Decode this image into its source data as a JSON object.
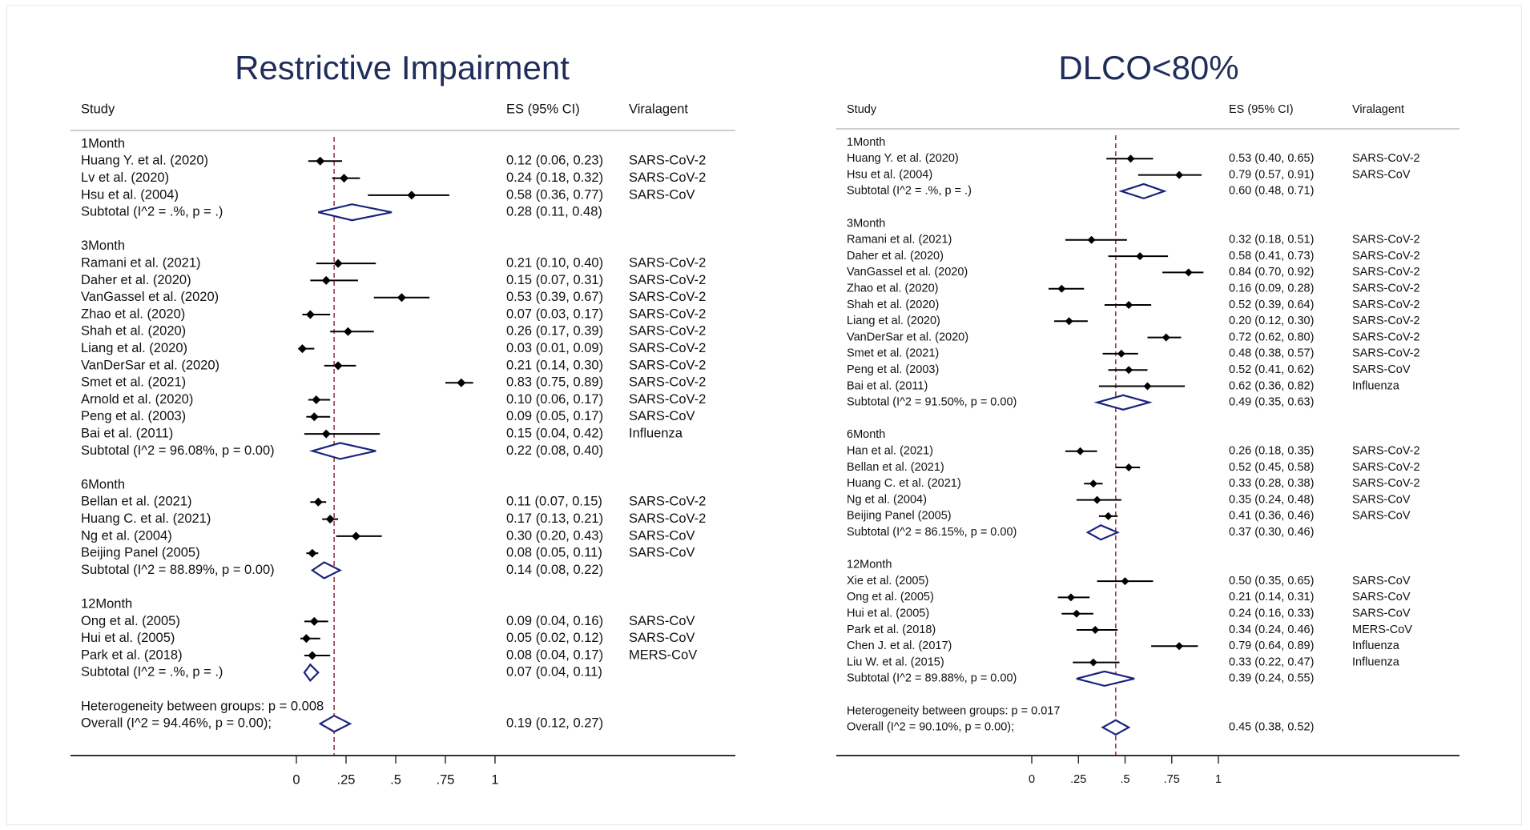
{
  "chart_data": [
    {
      "type": "forest",
      "title": "Restrictive Impairment",
      "headers": {
        "study": "Study",
        "es": "ES (95% CI)",
        "agent": "Viralagent"
      },
      "ticks": [
        0,
        0.25,
        0.5,
        0.75,
        1
      ],
      "tick_labels": [
        "0",
        ".25",
        ".5",
        ".75",
        "1"
      ],
      "xlim": [
        0,
        1
      ],
      "reference_line": 0.19,
      "groups": [
        {
          "label": "1Month",
          "studies": [
            {
              "name": "Huang Y. et al. (2020)",
              "es": 0.12,
              "lo": 0.06,
              "hi": 0.23,
              "es_text": "0.12 (0.06, 0.23)",
              "agent": "SARS-CoV-2"
            },
            {
              "name": "Lv et al. (2020)",
              "es": 0.24,
              "lo": 0.18,
              "hi": 0.32,
              "es_text": "0.24 (0.18, 0.32)",
              "agent": "SARS-CoV-2"
            },
            {
              "name": "Hsu et al. (2004)",
              "es": 0.58,
              "lo": 0.36,
              "hi": 0.77,
              "es_text": "0.58 (0.36, 0.77)",
              "agent": "SARS-CoV"
            }
          ],
          "subtotal": {
            "label": "Subtotal  (I^2 = .%, p = .)",
            "es": 0.28,
            "lo": 0.11,
            "hi": 0.48,
            "es_text": "0.28 (0.11, 0.48)"
          }
        },
        {
          "label": "3Month",
          "studies": [
            {
              "name": "Ramani et al. (2021)",
              "es": 0.21,
              "lo": 0.1,
              "hi": 0.4,
              "es_text": "0.21 (0.10, 0.40)",
              "agent": "SARS-CoV-2"
            },
            {
              "name": "Daher et al. (2020)",
              "es": 0.15,
              "lo": 0.07,
              "hi": 0.31,
              "es_text": "0.15 (0.07, 0.31)",
              "agent": "SARS-CoV-2"
            },
            {
              "name": "VanGassel et al. (2020)",
              "es": 0.53,
              "lo": 0.39,
              "hi": 0.67,
              "es_text": "0.53 (0.39, 0.67)",
              "agent": "SARS-CoV-2"
            },
            {
              "name": "Zhao et al. (2020)",
              "es": 0.07,
              "lo": 0.03,
              "hi": 0.17,
              "es_text": "0.07 (0.03, 0.17)",
              "agent": "SARS-CoV-2"
            },
            {
              "name": "Shah et al. (2020)",
              "es": 0.26,
              "lo": 0.17,
              "hi": 0.39,
              "es_text": "0.26 (0.17, 0.39)",
              "agent": "SARS-CoV-2"
            },
            {
              "name": "Liang et al.  (2020)",
              "es": 0.03,
              "lo": 0.01,
              "hi": 0.09,
              "es_text": "0.03 (0.01, 0.09)",
              "agent": "SARS-CoV-2"
            },
            {
              "name": "VanDerSar et al. (2020)",
              "es": 0.21,
              "lo": 0.14,
              "hi": 0.3,
              "es_text": "0.21 (0.14, 0.30)",
              "agent": "SARS-CoV-2"
            },
            {
              "name": "Smet et al. (2021)",
              "es": 0.83,
              "lo": 0.75,
              "hi": 0.89,
              "es_text": "0.83 (0.75, 0.89)",
              "agent": "SARS-CoV-2"
            },
            {
              "name": "Arnold et al. (2020)",
              "es": 0.1,
              "lo": 0.06,
              "hi": 0.17,
              "es_text": "0.10 (0.06, 0.17)",
              "agent": "SARS-CoV-2"
            },
            {
              "name": "Peng et al.  (2003)",
              "es": 0.09,
              "lo": 0.05,
              "hi": 0.17,
              "es_text": "0.09 (0.05, 0.17)",
              "agent": "SARS-CoV"
            },
            {
              "name": "Bai et al.  (2011)",
              "es": 0.15,
              "lo": 0.04,
              "hi": 0.42,
              "es_text": "0.15 (0.04, 0.42)",
              "agent": "Influenza"
            }
          ],
          "subtotal": {
            "label": "Subtotal  (I^2 = 96.08%, p = 0.00)",
            "es": 0.22,
            "lo": 0.08,
            "hi": 0.4,
            "es_text": "0.22 (0.08, 0.40)"
          }
        },
        {
          "label": "6Month",
          "studies": [
            {
              "name": "Bellan et al. (2021)",
              "es": 0.11,
              "lo": 0.07,
              "hi": 0.15,
              "es_text": "0.11 (0.07, 0.15)",
              "agent": "SARS-CoV-2"
            },
            {
              "name": "Huang C. et al. (2021)",
              "es": 0.17,
              "lo": 0.13,
              "hi": 0.21,
              "es_text": "0.17 (0.13, 0.21)",
              "agent": "SARS-CoV-2"
            },
            {
              "name": "Ng et al.  (2004)",
              "es": 0.3,
              "lo": 0.2,
              "hi": 0.43,
              "es_text": "0.30 (0.20, 0.43)",
              "agent": "SARS-CoV"
            },
            {
              "name": "Beijing Panel (2005)",
              "es": 0.08,
              "lo": 0.05,
              "hi": 0.11,
              "es_text": "0.08 (0.05, 0.11)",
              "agent": "SARS-CoV"
            }
          ],
          "subtotal": {
            "label": "Subtotal  (I^2 = 88.89%, p = 0.00)",
            "es": 0.14,
            "lo": 0.08,
            "hi": 0.22,
            "es_text": "0.14 (0.08, 0.22)"
          }
        },
        {
          "label": "12Month",
          "studies": [
            {
              "name": "Ong et al. (2005)",
              "es": 0.09,
              "lo": 0.04,
              "hi": 0.16,
              "es_text": "0.09 (0.04, 0.16)",
              "agent": "SARS-CoV"
            },
            {
              "name": "Hui et al. (2005)",
              "es": 0.05,
              "lo": 0.02,
              "hi": 0.12,
              "es_text": "0.05 (0.02, 0.12)",
              "agent": "SARS-CoV"
            },
            {
              "name": "Park et al. (2018)",
              "es": 0.08,
              "lo": 0.04,
              "hi": 0.17,
              "es_text": "0.08 (0.04, 0.17)",
              "agent": "MERS-CoV"
            }
          ],
          "subtotal": {
            "label": "Subtotal  (I^2 = .%, p = .)",
            "es": 0.07,
            "lo": 0.04,
            "hi": 0.11,
            "es_text": "0.07 (0.04, 0.11)"
          }
        }
      ],
      "heterogeneity": "Heterogeneity between groups: p = 0.008",
      "overall": {
        "label": "Overall  (I^2 = 94.46%, p = 0.00);",
        "es": 0.19,
        "lo": 0.12,
        "hi": 0.27,
        "es_text": "0.19 (0.12, 0.27)"
      }
    },
    {
      "type": "forest",
      "title": "DLCO<80%",
      "headers": {
        "study": "Study",
        "es": "ES (95% CI)",
        "agent": "Viralagent"
      },
      "ticks": [
        0,
        0.25,
        0.5,
        0.75,
        1
      ],
      "tick_labels": [
        "0",
        ".25",
        ".5",
        ".75",
        "1"
      ],
      "xlim": [
        0,
        1
      ],
      "reference_line": 0.45,
      "groups": [
        {
          "label": "1Month",
          "studies": [
            {
              "name": "Huang Y. et al. (2020)",
              "es": 0.53,
              "lo": 0.4,
              "hi": 0.65,
              "es_text": "0.53 (0.40, 0.65)",
              "agent": "SARS-CoV-2"
            },
            {
              "name": "Hsu et al. (2004)",
              "es": 0.79,
              "lo": 0.57,
              "hi": 0.91,
              "es_text": "0.79 (0.57, 0.91)",
              "agent": "SARS-CoV"
            }
          ],
          "subtotal": {
            "label": "Subtotal  (I^2 = .%, p = .)",
            "es": 0.6,
            "lo": 0.48,
            "hi": 0.71,
            "es_text": "0.60 (0.48, 0.71)"
          }
        },
        {
          "label": "3Month",
          "studies": [
            {
              "name": "Ramani et al. (2021)",
              "es": 0.32,
              "lo": 0.18,
              "hi": 0.51,
              "es_text": "0.32 (0.18, 0.51)",
              "agent": "SARS-CoV-2"
            },
            {
              "name": "Daher et al. (2020)",
              "es": 0.58,
              "lo": 0.41,
              "hi": 0.73,
              "es_text": "0.58 (0.41, 0.73)",
              "agent": "SARS-CoV-2"
            },
            {
              "name": "VanGassel et al. (2020)",
              "es": 0.84,
              "lo": 0.7,
              "hi": 0.92,
              "es_text": "0.84 (0.70, 0.92)",
              "agent": "SARS-CoV-2"
            },
            {
              "name": "Zhao et al. (2020)",
              "es": 0.16,
              "lo": 0.09,
              "hi": 0.28,
              "es_text": "0.16 (0.09, 0.28)",
              "agent": "SARS-CoV-2"
            },
            {
              "name": "Shah et al. (2020)",
              "es": 0.52,
              "lo": 0.39,
              "hi": 0.64,
              "es_text": "0.52 (0.39, 0.64)",
              "agent": "SARS-CoV-2"
            },
            {
              "name": "Liang et al.  (2020)",
              "es": 0.2,
              "lo": 0.12,
              "hi": 0.3,
              "es_text": "0.20 (0.12, 0.30)",
              "agent": "SARS-CoV-2"
            },
            {
              "name": "VanDerSar et al. (2020)",
              "es": 0.72,
              "lo": 0.62,
              "hi": 0.8,
              "es_text": "0.72 (0.62, 0.80)",
              "agent": "SARS-CoV-2"
            },
            {
              "name": "Smet et al. (2021)",
              "es": 0.48,
              "lo": 0.38,
              "hi": 0.57,
              "es_text": "0.48 (0.38, 0.57)",
              "agent": "SARS-CoV-2"
            },
            {
              "name": "Peng et al.  (2003)",
              "es": 0.52,
              "lo": 0.41,
              "hi": 0.62,
              "es_text": "0.52 (0.41, 0.62)",
              "agent": "SARS-CoV"
            },
            {
              "name": "Bai et al.  (2011)",
              "es": 0.62,
              "lo": 0.36,
              "hi": 0.82,
              "es_text": "0.62 (0.36, 0.82)",
              "agent": "Influenza"
            }
          ],
          "subtotal": {
            "label": "Subtotal  (I^2 = 91.50%, p = 0.00)",
            "es": 0.49,
            "lo": 0.35,
            "hi": 0.63,
            "es_text": "0.49 (0.35, 0.63)"
          }
        },
        {
          "label": "6Month",
          "studies": [
            {
              "name": "Han et al. (2021)",
              "es": 0.26,
              "lo": 0.18,
              "hi": 0.35,
              "es_text": "0.26 (0.18, 0.35)",
              "agent": "SARS-CoV-2"
            },
            {
              "name": "Bellan et al. (2021)",
              "es": 0.52,
              "lo": 0.45,
              "hi": 0.58,
              "es_text": "0.52 (0.45, 0.58)",
              "agent": "SARS-CoV-2"
            },
            {
              "name": "Huang C. et al. (2021)",
              "es": 0.33,
              "lo": 0.28,
              "hi": 0.38,
              "es_text": "0.33 (0.28, 0.38)",
              "agent": "SARS-CoV-2"
            },
            {
              "name": "Ng et al.  (2004)",
              "es": 0.35,
              "lo": 0.24,
              "hi": 0.48,
              "es_text": "0.35 (0.24, 0.48)",
              "agent": "SARS-CoV"
            },
            {
              "name": "Beijing Panel (2005)",
              "es": 0.41,
              "lo": 0.36,
              "hi": 0.46,
              "es_text": "0.41 (0.36, 0.46)",
              "agent": "SARS-CoV"
            }
          ],
          "subtotal": {
            "label": "Subtotal  (I^2 = 86.15%, p = 0.00)",
            "es": 0.37,
            "lo": 0.3,
            "hi": 0.46,
            "es_text": "0.37 (0.30, 0.46)"
          }
        },
        {
          "label": "12Month",
          "studies": [
            {
              "name": "Xie et al. (2005)",
              "es": 0.5,
              "lo": 0.35,
              "hi": 0.65,
              "es_text": "0.50 (0.35, 0.65)",
              "agent": "SARS-CoV"
            },
            {
              "name": "Ong et al. (2005)",
              "es": 0.21,
              "lo": 0.14,
              "hi": 0.31,
              "es_text": "0.21 (0.14, 0.31)",
              "agent": "SARS-CoV"
            },
            {
              "name": "Hui et al. (2005)",
              "es": 0.24,
              "lo": 0.16,
              "hi": 0.33,
              "es_text": "0.24 (0.16, 0.33)",
              "agent": "SARS-CoV"
            },
            {
              "name": "Park et al. (2018)",
              "es": 0.34,
              "lo": 0.24,
              "hi": 0.46,
              "es_text": "0.34 (0.24, 0.46)",
              "agent": "MERS-CoV"
            },
            {
              "name": "Chen J. et al. (2017)",
              "es": 0.79,
              "lo": 0.64,
              "hi": 0.89,
              "es_text": "0.79 (0.64, 0.89)",
              "agent": "Influenza"
            },
            {
              "name": "Liu W. et al.  (2015)",
              "es": 0.33,
              "lo": 0.22,
              "hi": 0.47,
              "es_text": "0.33 (0.22, 0.47)",
              "agent": "Influenza"
            }
          ],
          "subtotal": {
            "label": "Subtotal  (I^2 = 89.88%, p = 0.00)",
            "es": 0.39,
            "lo": 0.24,
            "hi": 0.55,
            "es_text": "0.39 (0.24, 0.55)"
          }
        }
      ],
      "heterogeneity": "Heterogeneity between groups: p = 0.017",
      "overall": {
        "label": "Overall  (I^2 = 90.10%, p = 0.00);",
        "es": 0.45,
        "lo": 0.38,
        "hi": 0.52,
        "es_text": "0.45 (0.38, 0.52)"
      }
    }
  ],
  "colors": {
    "title": "#1f2d5a",
    "text": "#111111",
    "marker": "#000000",
    "diamond": "#1a237e",
    "reference_line": "#a3334a",
    "axis": "#333333",
    "rule": "#bdbdbd"
  }
}
